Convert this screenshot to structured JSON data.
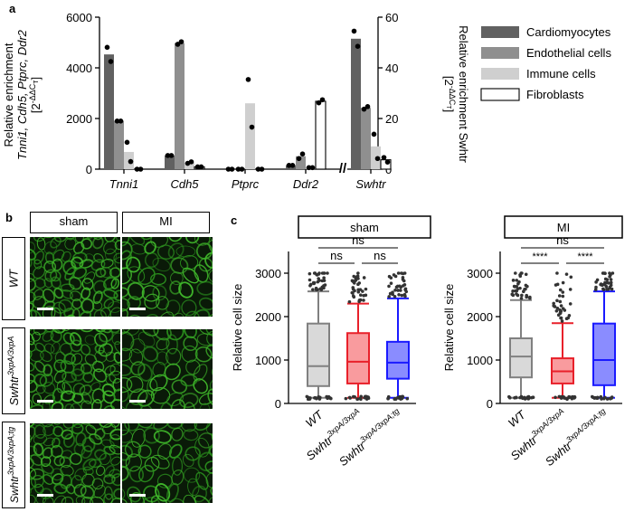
{
  "panels": {
    "a": "a",
    "b": "b",
    "c": "c"
  },
  "chart_data": [
    {
      "type": "bar",
      "panel": "a",
      "categories_left": [
        "Tnni1",
        "Cdh5",
        "Ptprc",
        "Ddr2"
      ],
      "category_right": "Swhtr",
      "series": [
        {
          "name": "Cardiomyocytes",
          "color": "#616161",
          "values": [
            4530,
            540,
            0,
            150,
            51.5
          ],
          "points": [
            [
              4810,
              4250
            ],
            [
              540,
              540
            ],
            [
              0,
              0
            ],
            [
              150,
              150
            ],
            [
              54.5,
              48.5
            ]
          ]
        },
        {
          "name": "Endothelial cells",
          "color": "#8f8f8f",
          "values": [
            1900,
            4980,
            0,
            510,
            24.2
          ],
          "points": [
            [
              1900,
              1900
            ],
            [
              4930,
              5030
            ],
            [
              0,
              0
            ],
            [
              420,
              600
            ],
            [
              23.7,
              24.7
            ]
          ]
        },
        {
          "name": "Immune cells",
          "color": "#cfcfcf",
          "values": [
            680,
            260,
            2600,
            60,
            9.0
          ],
          "points": [
            [
              1060,
              300
            ],
            [
              230,
              290
            ],
            [
              3540,
              1660
            ],
            [
              60,
              60
            ],
            [
              13.8,
              4.2
            ]
          ]
        },
        {
          "name": "Fibroblasts",
          "color": "#ffffff",
          "values": [
            0,
            90,
            0,
            2680,
            3.7
          ],
          "points": [
            [
              0,
              0
            ],
            [
              90,
              90
            ],
            [
              0,
              0
            ],
            [
              2620,
              2740
            ],
            [
              4.6,
              2.8
            ]
          ]
        }
      ],
      "ylim_left": [
        0,
        6000
      ],
      "yticks_left": [
        "0",
        "2000",
        "4000",
        "6000"
      ],
      "ylim_right": [
        0,
        60
      ],
      "yticks_right": [
        "0",
        "20",
        "40",
        "60"
      ],
      "ylabel_left": {
        "line1": "Relative enrichment",
        "line2": "Tnni1, Cdh5, Ptprc, Ddr2",
        "line3": "[2",
        "line3_sup": "-ΔΔC",
        "line3_sub": "T",
        "line3_end": "]"
      },
      "ylabel_right": {
        "line1": "Relative enrichment Swhtr",
        "line2": "[2",
        "line2_sup": "-ΔΔC",
        "line2_sub": "T",
        "line2_end": "]"
      },
      "axis_break": "//"
    },
    {
      "type": "box",
      "panel": "c",
      "title": "sham",
      "ylabel": "Relative cell size",
      "ylim": [
        0,
        3500
      ],
      "yticks": [
        "0",
        "1000",
        "2000",
        "3000"
      ],
      "groups": [
        {
          "label": "WT",
          "sup": "",
          "color": "#808080",
          "fill": "#d9d9d9",
          "min": 130,
          "q1": 400,
          "median": 860,
          "q3": 1840,
          "max": 2580
        },
        {
          "label": "Swhtr",
          "sup": "3xpA/3xpA",
          "color": "#e8202a",
          "fill": "#f99b9e",
          "min": 130,
          "q1": 460,
          "median": 960,
          "q3": 1620,
          "max": 2300
        },
        {
          "label": "Swhtr",
          "sup": "3xpA/3xpA;tg",
          "color": "#1a1aff",
          "fill": "#8a8cff",
          "min": 130,
          "q1": 570,
          "median": 940,
          "q3": 1420,
          "max": 2420
        }
      ],
      "comparisons": [
        {
          "pair": [
            0,
            2
          ],
          "label": "ns"
        },
        {
          "pair": [
            0,
            1
          ],
          "label": "ns"
        },
        {
          "pair": [
            1,
            2
          ],
          "label": "ns"
        }
      ]
    },
    {
      "type": "box",
      "panel": "c",
      "title": "MI",
      "ylabel": "Relative cell size",
      "ylim": [
        0,
        3500
      ],
      "yticks": [
        "0",
        "1000",
        "2000",
        "3000"
      ],
      "groups": [
        {
          "label": "WT",
          "sup": "",
          "color": "#808080",
          "fill": "#d9d9d9",
          "min": 130,
          "q1": 600,
          "median": 1080,
          "q3": 1500,
          "max": 2380
        },
        {
          "label": "Swhtr",
          "sup": "3xpA/3xpA",
          "color": "#e8202a",
          "fill": "#f99b9e",
          "min": 130,
          "q1": 460,
          "median": 740,
          "q3": 1040,
          "max": 1850
        },
        {
          "label": "Swhtr",
          "sup": "3xpA/3xpA;tg",
          "color": "#1a1aff",
          "fill": "#8a8cff",
          "min": 130,
          "q1": 420,
          "median": 1000,
          "q3": 1840,
          "max": 2580
        }
      ],
      "comparisons": [
        {
          "pair": [
            0,
            2
          ],
          "label": "ns"
        },
        {
          "pair": [
            0,
            1
          ],
          "label": "****"
        },
        {
          "pair": [
            1,
            2
          ],
          "label": "****"
        }
      ]
    }
  ],
  "panel_b": {
    "columns": [
      "sham",
      "MI"
    ],
    "rows": [
      {
        "label": "WT",
        "sup": ""
      },
      {
        "label": "Swhtr",
        "sup": "3xpA/3xpA"
      },
      {
        "label": "Swhtr",
        "sup": "3xpA/3xpA;tg"
      }
    ]
  }
}
